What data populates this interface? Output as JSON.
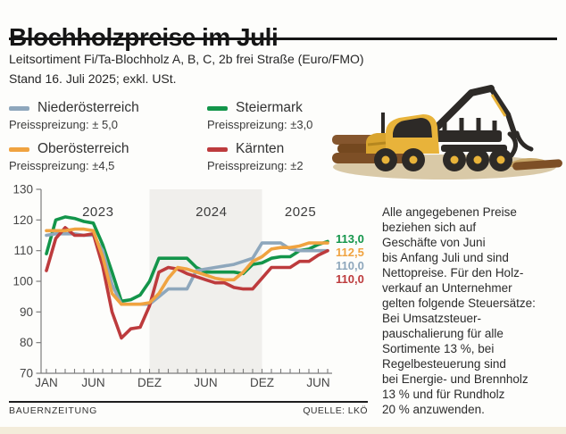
{
  "header": {
    "title": "Blochholzpreise im Juli",
    "subtitle1": "Leitsortiment Fi/Ta-Blochholz A, B, C, 2b frei Straße (Euro/FMO)",
    "subtitle2": "Stand 16. Juli 2025; exkl. USt."
  },
  "legend": {
    "items": [
      {
        "region": "Niederösterreich",
        "spread": "Preisspreizung: ± 5,0",
        "color": "#8ea7bc"
      },
      {
        "region": "Steiermark",
        "spread": "Preisspreizung: ±3,0",
        "color": "#13954a"
      },
      {
        "region": "Oberösterreich",
        "spread": "Preisspreizung: ±4,5",
        "color": "#f0a340"
      },
      {
        "region": "Kärnten",
        "spread": "Preisspreizung: ±2",
        "color": "#bd3b3d"
      }
    ]
  },
  "chart_data": {
    "type": "line",
    "title": "Blochholzpreise im Juli",
    "unit": "Euro/FMO",
    "ylim": [
      70,
      130
    ],
    "ytick_step": 10,
    "grid": false,
    "x_months": [
      "Jan 2023",
      "Feb 2023",
      "Mär 2023",
      "Apr 2023",
      "Mai 2023",
      "Jun 2023",
      "Jul 2023",
      "Aug 2023",
      "Sep 2023",
      "Okt 2023",
      "Nov 2023",
      "Dez 2023",
      "Jan 2024",
      "Feb 2024",
      "Mär 2024",
      "Apr 2024",
      "Mai 2024",
      "Jun 2024",
      "Jul 2024",
      "Aug 2024",
      "Sep 2024",
      "Okt 2024",
      "Nov 2024",
      "Dez 2024",
      "Jan 2025",
      "Feb 2025",
      "Mär 2025",
      "Apr 2025",
      "Mai 2025",
      "Jun 2025",
      "Jul 2025"
    ],
    "xticks": [
      {
        "label": "JAN",
        "month": 0
      },
      {
        "label": "JUN",
        "month": 5
      },
      {
        "label": "DEZ",
        "month": 11
      },
      {
        "label": "JUN",
        "month": 17
      },
      {
        "label": "DEZ",
        "month": 23
      },
      {
        "label": "JUN",
        "month": 29
      }
    ],
    "year_labels": [
      {
        "label": "2023",
        "month": 5.5
      },
      {
        "label": "2024",
        "month": 17.6
      },
      {
        "label": "2025",
        "month": 27.1
      }
    ],
    "band": {
      "from_month": 11,
      "to_month": 23,
      "color": "#f0efec"
    },
    "series": [
      {
        "name": "Steiermark",
        "color": "#13954a",
        "final_label": "113,0",
        "values": [
          109,
          120,
          121,
          120.5,
          119.5,
          119,
          112,
          103,
          93.5,
          94,
          95.5,
          100,
          107.5,
          107.5,
          107.5,
          107.5,
          104.5,
          103,
          103,
          103,
          103,
          102.5,
          105.5,
          106,
          107.5,
          108,
          108,
          110,
          110.5,
          112,
          113
        ]
      },
      {
        "name": "Niederösterreich",
        "color": "#8ea7bc",
        "final_label": "110,0",
        "values": [
          115,
          115.5,
          115.5,
          115.5,
          115,
          115,
          110,
          99,
          92.5,
          92.5,
          92.5,
          92.5,
          95,
          97.5,
          97.5,
          97.5,
          103.5,
          104,
          104.5,
          105,
          105.5,
          106.5,
          107.5,
          112.5,
          112.5,
          112.5,
          110.5,
          110,
          110,
          110,
          110
        ]
      },
      {
        "name": "Kärnten",
        "color": "#bd3b3d",
        "final_label": "110,0",
        "values": [
          103.5,
          114,
          117.5,
          115,
          115,
          115.5,
          105,
          90,
          81.5,
          84.5,
          85,
          92,
          103,
          104.5,
          104,
          102.5,
          101.5,
          100.5,
          99.5,
          99.5,
          98,
          97.5,
          97.5,
          101,
          104.5,
          104.5,
          104.5,
          106.5,
          106.5,
          108.5,
          110
        ]
      },
      {
        "name": "Oberösterreich",
        "color": "#f0a340",
        "final_label": "112,5",
        "values": [
          116.5,
          116.5,
          116.5,
          117,
          117,
          116.5,
          108,
          96,
          92.5,
          92.5,
          92.5,
          93,
          96,
          101,
          104.5,
          104,
          103,
          102,
          101,
          100.5,
          100.5,
          103,
          106.5,
          108,
          110.5,
          111,
          111,
          111.5,
          112.5,
          112.5,
          112.5
        ]
      }
    ],
    "end_labels": [
      {
        "value": "113,0",
        "color": "#13954a"
      },
      {
        "value": "112,5",
        "color": "#f0a340"
      },
      {
        "value": "110,0",
        "color": "#8ea7bc"
      },
      {
        "value": "110,0",
        "color": "#bd3b3d"
      }
    ],
    "legend_position": "top-left"
  },
  "note": {
    "text": "Alle angegebenen Preise\nbeziehen sich auf\nGeschäfte von Juni\nbis Anfang Juli und sind\nNettopreise. Für den Holz-\nverkauf an Unternehmer\ngelten folgende Steuersätze:\nBei Umsatzsteuer-\npauschalierung für alle\nSortimente 13 %, bei\nRegelbesteuerung sind\nbei Energie- und Brennholz\n13 % und für Rundholz\n20 % anzuwenden."
  },
  "footer": {
    "brand": "BAUERNZEITUNG",
    "source": "QUELLE: LKÖ"
  }
}
